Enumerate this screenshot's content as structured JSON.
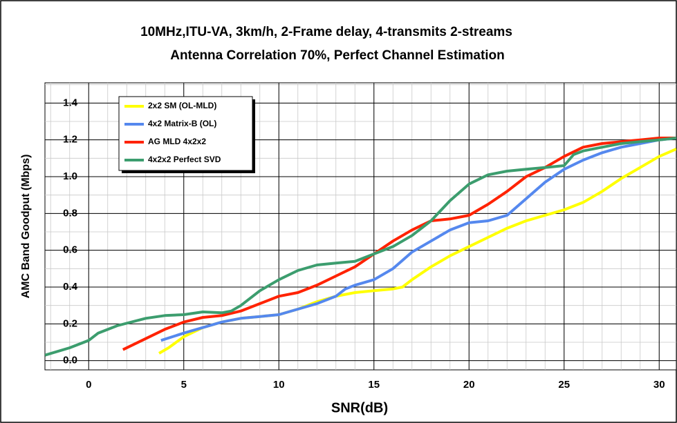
{
  "chart_data": {
    "type": "line",
    "title": "10MHz,ITU-VA, 3km/h, 2-Frame delay, 4-transmits 2-streams",
    "subtitle": "Antenna Correlation 70%, Perfect Channel Estimation",
    "x_label": "SNR(dB)",
    "y_label": "AMC Band Goodput (Mbps)",
    "xlim": [
      -2.3,
      30.9
    ],
    "ylim": [
      -0.05,
      1.51
    ],
    "xticks": [
      0,
      5,
      10,
      15,
      20,
      25,
      30
    ],
    "yticks": [
      {
        "value": 0,
        "label": "0.0"
      },
      0.2,
      0.4,
      0.6,
      0.8,
      {
        "value": 1,
        "label": "1.0"
      },
      1.2,
      1.4
    ],
    "grid": true,
    "legend": "upper left",
    "series": [
      {
        "name": "2x2 SM (OL-MLD)",
        "color": "#ffff00",
        "x": [
          3.7,
          4.2,
          5,
          6,
          7,
          8,
          9,
          10,
          11,
          12,
          13,
          14,
          15,
          16,
          16.5,
          17,
          18,
          19,
          20,
          21,
          22,
          23,
          24,
          25,
          26,
          27,
          28,
          29,
          30,
          30.9
        ],
        "values": [
          0.04,
          0.07,
          0.13,
          0.18,
          0.21,
          0.23,
          0.24,
          0.25,
          0.28,
          0.32,
          0.35,
          0.37,
          0.38,
          0.39,
          0.4,
          0.44,
          0.51,
          0.57,
          0.62,
          0.67,
          0.72,
          0.76,
          0.79,
          0.82,
          0.86,
          0.92,
          0.99,
          1.05,
          1.11,
          1.15
        ]
      },
      {
        "name": "4x2 Matrix-B (OL)",
        "color": "#5588ee",
        "x": [
          3.8,
          5,
          6,
          7,
          8,
          9,
          10,
          11,
          12,
          13,
          13.5,
          14,
          15,
          16,
          17,
          18,
          19,
          20,
          21,
          22,
          23,
          24,
          25,
          26,
          27,
          28,
          29,
          30,
          30.9
        ],
        "values": [
          0.11,
          0.15,
          0.18,
          0.21,
          0.23,
          0.24,
          0.25,
          0.28,
          0.31,
          0.35,
          0.39,
          0.41,
          0.44,
          0.5,
          0.59,
          0.65,
          0.71,
          0.75,
          0.76,
          0.79,
          0.88,
          0.97,
          1.04,
          1.09,
          1.13,
          1.16,
          1.18,
          1.2,
          1.21
        ]
      },
      {
        "name": "AG MLD 4x2x2",
        "color": "#ff2200",
        "x": [
          1.8,
          3,
          4,
          5,
          6,
          7,
          8,
          9,
          10,
          11,
          12,
          13,
          14,
          15,
          16,
          17,
          18,
          19,
          20,
          21,
          22,
          23,
          24,
          25,
          26,
          27,
          28,
          29,
          30,
          30.9
        ],
        "values": [
          0.06,
          0.12,
          0.17,
          0.21,
          0.235,
          0.245,
          0.27,
          0.31,
          0.35,
          0.37,
          0.41,
          0.46,
          0.51,
          0.58,
          0.65,
          0.71,
          0.76,
          0.77,
          0.79,
          0.85,
          0.92,
          1.0,
          1.05,
          1.11,
          1.16,
          1.18,
          1.19,
          1.2,
          1.21,
          1.21
        ]
      },
      {
        "name": "4x2x2 Perfect SVD",
        "color": "#3c9d6e",
        "x": [
          -2.3,
          -1,
          0,
          0.5,
          1.5,
          3,
          4,
          5,
          6,
          7,
          7.5,
          8,
          9,
          10,
          11,
          12,
          13,
          14,
          15,
          16,
          17,
          18,
          19,
          20,
          21,
          22,
          23,
          24,
          25,
          25.5,
          26,
          27,
          28,
          29,
          30,
          30.9
        ],
        "values": [
          0.03,
          0.07,
          0.11,
          0.15,
          0.19,
          0.23,
          0.245,
          0.25,
          0.265,
          0.26,
          0.27,
          0.3,
          0.38,
          0.44,
          0.49,
          0.52,
          0.53,
          0.54,
          0.58,
          0.62,
          0.68,
          0.76,
          0.87,
          0.96,
          1.01,
          1.03,
          1.04,
          1.05,
          1.06,
          1.12,
          1.14,
          1.16,
          1.18,
          1.19,
          1.2,
          1.21
        ]
      }
    ]
  }
}
